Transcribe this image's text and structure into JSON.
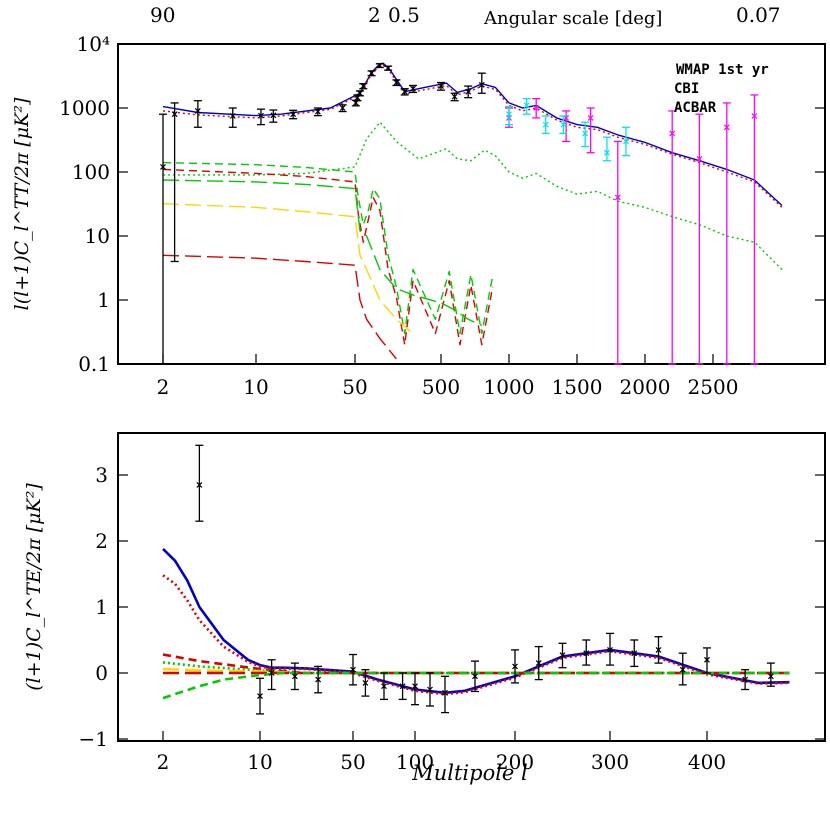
{
  "chart_data": [
    {
      "type": "line",
      "panel": "top",
      "ylabel": "l(l+1)C_l^TT/2π [μK²]",
      "top_axis_label": "Angular scale [deg]",
      "top_ticks": [
        "90",
        "2",
        "0.5",
        "0.07"
      ],
      "x_ticks": [
        "2",
        "10",
        "50",
        "500",
        "1000",
        "1500",
        "2000",
        "2500"
      ],
      "y_ticks": [
        "0.1",
        "1",
        "10",
        "100",
        "1000",
        "10⁴"
      ],
      "y_scale": "log",
      "ylim": [
        0.1,
        10000
      ],
      "legend": [
        {
          "label": "WMAP 1st yr",
          "color": "#000000"
        },
        {
          "label": "CBI",
          "color": "#ff00ff"
        },
        {
          "label": "ACBAR",
          "color": "#00e5ee"
        }
      ],
      "legend_position": "top-right",
      "series": [
        {
          "style": "solid",
          "color": "#0000cc",
          "x": [
            2,
            5,
            10,
            20,
            40,
            80,
            150,
            200,
            220,
            260,
            350,
            420,
            540,
            620,
            720,
            800,
            900,
            1000,
            1100,
            1200,
            1350,
            1500,
            1650,
            1800,
            2000,
            2200,
            2400,
            2600,
            2800,
            3000
          ],
          "y": [
            1050,
            850,
            760,
            800,
            1000,
            1700,
            3600,
            4900,
            5000,
            4000,
            1800,
            2000,
            2450,
            1750,
            2000,
            2400,
            2100,
            1200,
            1000,
            1100,
            700,
            550,
            500,
            380,
            290,
            200,
            150,
            110,
            75,
            30
          ]
        },
        {
          "style": "dotted",
          "color": "#dd0000",
          "x": [
            2,
            5,
            10,
            20,
            40,
            80,
            150,
            200,
            220,
            260,
            350,
            420,
            540,
            620,
            720,
            800,
            900,
            1000,
            1100,
            1200,
            1350,
            1500,
            1650,
            1800,
            2000,
            2200,
            2400,
            2600,
            2800,
            3000
          ],
          "y": [
            900,
            780,
            700,
            750,
            950,
            1600,
            3400,
            4600,
            4700,
            3700,
            1650,
            1850,
            2250,
            1600,
            1850,
            2200,
            1950,
            1100,
            900,
            1000,
            650,
            500,
            460,
            350,
            270,
            190,
            140,
            100,
            70,
            28
          ]
        },
        {
          "style": "dotted",
          "color": "#00cc00",
          "x": [
            2,
            10,
            30,
            50,
            120,
            200,
            300,
            420,
            540,
            620,
            720,
            820,
            900,
            1000,
            1100,
            1200,
            1350,
            1500,
            1650,
            1800,
            2000,
            2200,
            2400,
            2600,
            2800,
            3000
          ],
          "y": [
            90,
            90,
            95,
            120,
            330,
            600,
            300,
            160,
            230,
            160,
            150,
            220,
            180,
            100,
            80,
            95,
            60,
            45,
            50,
            35,
            28,
            20,
            15,
            10,
            8,
            3
          ]
        },
        {
          "style": "dashed",
          "color": "#00cc00",
          "x": [
            2,
            10,
            30,
            50,
            70,
            100,
            130,
            160,
            200,
            250,
            300,
            350,
            400,
            480,
            560,
            640,
            720,
            800,
            880
          ],
          "y": [
            140,
            130,
            118,
            100,
            40,
            15,
            25,
            55,
            38,
            5,
            1.6,
            0.3,
            3,
            0.5,
            2.8,
            0.3,
            2.5,
            0.3,
            2.4
          ]
        },
        {
          "style": "dashed",
          "color": "#dd0000",
          "x": [
            2,
            10,
            30,
            50,
            70,
            100,
            130,
            160,
            200,
            250,
            300,
            350,
            400,
            480,
            560,
            640,
            720,
            800,
            880
          ],
          "y": [
            110,
            95,
            85,
            70,
            22,
            8,
            18,
            40,
            25,
            3,
            1.1,
            0.2,
            2,
            0.3,
            2,
            0.2,
            1.7,
            0.2,
            1.6
          ]
        },
        {
          "style": "long-dash",
          "color": "#00cc00",
          "x": [
            2,
            10,
            30,
            50,
            80,
            120,
            200,
            300,
            400,
            500,
            600,
            700,
            800
          ],
          "y": [
            75,
            70,
            64,
            55,
            12,
            10,
            3,
            1.5,
            1.2,
            0.9,
            0.7,
            0.5,
            0.4
          ]
        },
        {
          "style": "long-dash",
          "color": "#ffd700",
          "x": [
            2,
            10,
            30,
            50,
            80,
            120,
            200,
            300,
            400
          ],
          "y": [
            32,
            28,
            24,
            20,
            5,
            3,
            1,
            0.5,
            0.3
          ]
        },
        {
          "style": "long-dash",
          "color": "#dd0000",
          "x": [
            2,
            10,
            30,
            50,
            80,
            120,
            200,
            300
          ],
          "y": [
            5,
            4.5,
            4,
            3.5,
            1,
            0.5,
            0.25,
            0.12
          ]
        }
      ],
      "errorbars": [
        {
          "name": "WMAP 1st yr",
          "color": "#000000",
          "x": [
            2,
            3,
            5,
            8,
            12,
            17,
            25,
            35,
            45,
            55,
            65,
            80,
            100,
            150,
            200,
            250,
            300,
            350,
            400,
            500,
            600,
            700,
            800
          ],
          "y": [
            120,
            800,
            900,
            750,
            760,
            770,
            800,
            880,
            1000,
            1200,
            1450,
            1700,
            2200,
            3500,
            4600,
            4200,
            2500,
            1800,
            2000,
            2200,
            1500,
            1800,
            2300
          ],
          "ylo": [
            0.1,
            4,
            500,
            500,
            550,
            600,
            680,
            760,
            880,
            1080,
            1300,
            1550,
            2000,
            3200,
            4300,
            3900,
            2250,
            1600,
            1750,
            1900,
            1300,
            1450,
            1700
          ],
          "yhi": [
            800,
            1200,
            1300,
            1000,
            960,
            930,
            920,
            1000,
            1120,
            1320,
            1600,
            1850,
            2400,
            3800,
            4900,
            4500,
            2750,
            2000,
            2250,
            2500,
            1700,
            2200,
            3500
          ]
        },
        {
          "name": "CBI",
          "color": "#ff00ff",
          "x": [
            1000,
            1200,
            1420,
            1600,
            1800,
            2200,
            2400,
            2600,
            2800
          ],
          "y": [
            700,
            1000,
            700,
            700,
            40,
            400,
            160,
            500,
            750
          ],
          "ylo": [
            500,
            700,
            300,
            200,
            0.1,
            0.1,
            0.1,
            0.1,
            0.1
          ],
          "yhi": [
            1000,
            1400,
            900,
            1000,
            300,
            900,
            800,
            1200,
            1600
          ]
        },
        {
          "name": "ACBAR",
          "color": "#00e5ee",
          "x": [
            1000,
            1130,
            1270,
            1400,
            1560,
            1720,
            1860
          ],
          "y": [
            800,
            1100,
            550,
            550,
            400,
            200,
            300
          ],
          "ylo": [
            550,
            800,
            400,
            400,
            250,
            150,
            180
          ],
          "yhi": [
            1050,
            1400,
            750,
            750,
            600,
            350,
            500
          ]
        }
      ]
    },
    {
      "type": "line",
      "panel": "bottom",
      "xlabel": "Multipole l",
      "ylabel": "(l+1)C_l^TE/2π [μK²]",
      "x_ticks": [
        "2",
        "10",
        "50",
        "100",
        "200",
        "300",
        "400"
      ],
      "y_ticks": [
        "−1",
        "0",
        "1",
        "2",
        "3"
      ],
      "ylim": [
        -1,
        3.6
      ],
      "series": [
        {
          "style": "solid",
          "color": "#0000cc",
          "x": [
            2,
            3,
            4,
            5,
            7,
            9,
            10,
            15,
            20,
            30,
            50,
            70,
            100,
            130,
            150,
            200,
            250,
            300,
            350,
            400,
            450,
            480
          ],
          "y": [
            1.88,
            1.7,
            1.4,
            1.0,
            0.5,
            0.2,
            0.12,
            0.08,
            0.08,
            0.07,
            0.02,
            -0.1,
            -0.25,
            -0.3,
            -0.27,
            -0.05,
            0.25,
            0.35,
            0.25,
            0.0,
            -0.15,
            -0.14
          ]
        },
        {
          "style": "dotted",
          "color": "#dd0000",
          "x": [
            2,
            3,
            4,
            5,
            7,
            9,
            10,
            15,
            20,
            30,
            50,
            70,
            100,
            130,
            150,
            200,
            250,
            300,
            350,
            400,
            450,
            480
          ],
          "y": [
            1.48,
            1.35,
            1.1,
            0.8,
            0.4,
            0.17,
            0.1,
            0.07,
            0.07,
            0.06,
            0.0,
            -0.12,
            -0.27,
            -0.32,
            -0.29,
            -0.07,
            0.23,
            0.33,
            0.23,
            -0.02,
            -0.16,
            -0.15
          ]
        },
        {
          "style": "dashed",
          "color": "#dd0000",
          "x": [
            2,
            5,
            10,
            30,
            100,
            480
          ],
          "y": [
            0.28,
            0.18,
            0.06,
            0.0,
            0.0,
            0.0
          ]
        },
        {
          "style": "dotted",
          "color": "#00cc00",
          "x": [
            2,
            5,
            10,
            30,
            100,
            480
          ],
          "y": [
            0.16,
            0.1,
            0.04,
            0.0,
            0.0,
            0.0
          ]
        },
        {
          "style": "long-dash",
          "color": "#ffd700",
          "x": [
            2,
            5,
            10,
            30,
            100,
            480
          ],
          "y": [
            0.06,
            0.04,
            0.02,
            0.0,
            0.0,
            0.0
          ]
        },
        {
          "style": "long-dash",
          "color": "#dd0000",
          "x": [
            2,
            5,
            10,
            30,
            100,
            480
          ],
          "y": [
            0.0,
            0.0,
            0.0,
            0.0,
            0.0,
            0.0
          ]
        },
        {
          "style": "dashed",
          "color": "#00cc00",
          "x": [
            2,
            3,
            5,
            7,
            10,
            20,
            40,
            100,
            480
          ],
          "y": [
            -0.38,
            -0.32,
            -0.2,
            -0.1,
            -0.03,
            0.0,
            0.0,
            0.0,
            0.0
          ]
        }
      ],
      "errorbars": [
        {
          "name": "WMAP 1st yr",
          "color": "#000000",
          "x": [
            5,
            10,
            15,
            25,
            35,
            50,
            60,
            75,
            90,
            100,
            115,
            130,
            160,
            200,
            225,
            250,
            275,
            300,
            325,
            350,
            375,
            400,
            437,
            462
          ],
          "y": [
            2.85,
            -0.35,
            0.0,
            -0.05,
            -0.1,
            0.05,
            -0.15,
            -0.2,
            -0.2,
            -0.2,
            -0.25,
            -0.3,
            -0.05,
            0.1,
            0.15,
            0.27,
            0.3,
            0.35,
            0.3,
            0.35,
            0.05,
            0.2,
            -0.1,
            -0.05
          ],
          "ylo": [
            2.3,
            -0.62,
            -0.25,
            -0.25,
            -0.3,
            -0.18,
            -0.35,
            -0.4,
            -0.4,
            -0.48,
            -0.5,
            -0.6,
            -0.28,
            -0.15,
            -0.1,
            0.08,
            0.12,
            0.12,
            0.1,
            0.15,
            -0.18,
            0.0,
            -0.25,
            -0.2
          ],
          "yhi": [
            3.45,
            -0.08,
            0.2,
            0.15,
            0.1,
            0.28,
            0.05,
            0.0,
            0.0,
            0.0,
            0.0,
            -0.05,
            0.18,
            0.35,
            0.4,
            0.45,
            0.5,
            0.6,
            0.5,
            0.55,
            0.3,
            0.38,
            0.05,
            0.15
          ]
        }
      ]
    }
  ]
}
